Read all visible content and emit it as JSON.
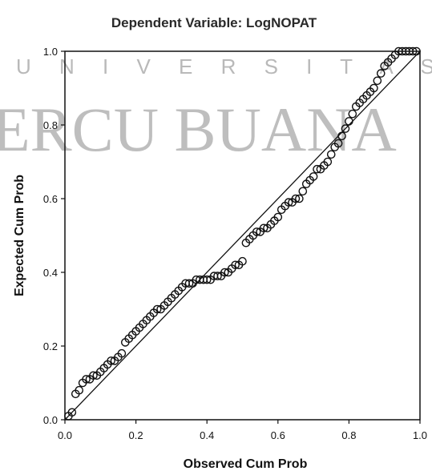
{
  "watermark": {
    "line1": "U N I V E R S I T A S",
    "line2": "ERCU BUANA",
    "color": "#a9a9a9"
  },
  "chart_data": {
    "type": "scatter",
    "title": "Dependent Variable: LogNOPAT",
    "xlabel": "Observed Cum Prob",
    "ylabel": "Expected Cum Prob",
    "xlim": [
      0,
      1
    ],
    "ylim": [
      0,
      1
    ],
    "xticks": [
      "0.0",
      "0.2",
      "0.4",
      "0.6",
      "0.8",
      "1.0"
    ],
    "yticks": [
      "0.0",
      "0.2",
      "0.4",
      "0.6",
      "0.8",
      "1.0"
    ],
    "grid": false,
    "reference_line": {
      "from": [
        0,
        0
      ],
      "to": [
        1,
        1
      ]
    },
    "points": {
      "x": [
        0.01,
        0.02,
        0.03,
        0.04,
        0.05,
        0.06,
        0.07,
        0.08,
        0.09,
        0.1,
        0.11,
        0.12,
        0.13,
        0.14,
        0.15,
        0.16,
        0.17,
        0.18,
        0.19,
        0.2,
        0.21,
        0.22,
        0.23,
        0.24,
        0.25,
        0.26,
        0.27,
        0.28,
        0.29,
        0.3,
        0.31,
        0.32,
        0.33,
        0.34,
        0.35,
        0.36,
        0.37,
        0.38,
        0.39,
        0.4,
        0.41,
        0.42,
        0.43,
        0.44,
        0.45,
        0.46,
        0.47,
        0.48,
        0.49,
        0.5,
        0.51,
        0.52,
        0.53,
        0.54,
        0.55,
        0.56,
        0.57,
        0.58,
        0.59,
        0.6,
        0.61,
        0.62,
        0.63,
        0.64,
        0.65,
        0.66,
        0.67,
        0.68,
        0.69,
        0.7,
        0.71,
        0.72,
        0.73,
        0.74,
        0.75,
        0.76,
        0.77,
        0.78,
        0.79,
        0.8,
        0.81,
        0.82,
        0.83,
        0.84,
        0.85,
        0.86,
        0.87,
        0.88,
        0.89,
        0.9,
        0.91,
        0.92,
        0.93,
        0.94,
        0.95,
        0.96,
        0.97,
        0.98,
        0.99
      ],
      "y": [
        0.01,
        0.02,
        0.07,
        0.08,
        0.1,
        0.11,
        0.11,
        0.12,
        0.12,
        0.13,
        0.14,
        0.15,
        0.16,
        0.16,
        0.17,
        0.18,
        0.21,
        0.22,
        0.23,
        0.24,
        0.25,
        0.26,
        0.27,
        0.28,
        0.29,
        0.3,
        0.3,
        0.31,
        0.32,
        0.33,
        0.34,
        0.35,
        0.36,
        0.37,
        0.37,
        0.37,
        0.38,
        0.38,
        0.38,
        0.38,
        0.38,
        0.39,
        0.39,
        0.39,
        0.4,
        0.4,
        0.41,
        0.42,
        0.42,
        0.43,
        0.48,
        0.49,
        0.5,
        0.51,
        0.51,
        0.52,
        0.52,
        0.53,
        0.54,
        0.55,
        0.57,
        0.58,
        0.59,
        0.59,
        0.6,
        0.6,
        0.62,
        0.64,
        0.65,
        0.66,
        0.68,
        0.68,
        0.69,
        0.7,
        0.72,
        0.74,
        0.75,
        0.77,
        0.79,
        0.81,
        0.83,
        0.85,
        0.86,
        0.87,
        0.88,
        0.89,
        0.9,
        0.92,
        0.94,
        0.96,
        0.97,
        0.98,
        0.99,
        1.0,
        1.0,
        1.0,
        1.0,
        1.0,
        1.0
      ]
    }
  }
}
